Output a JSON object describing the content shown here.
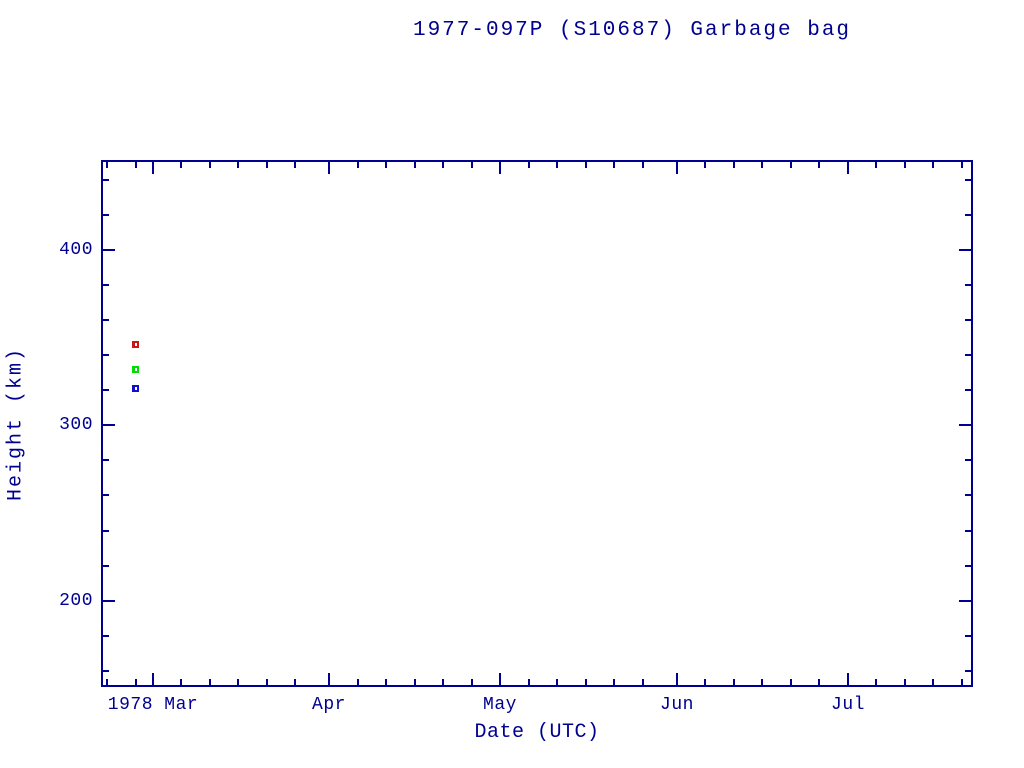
{
  "colors": {
    "axis": "#000090",
    "background": "#ffffff",
    "marker_red": "#cc1414",
    "marker_green": "#00dd00",
    "marker_blue": "#1010cc"
  },
  "chart_data": {
    "type": "scatter",
    "title": "1977-097P (S10687) Garbage bag",
    "xlabel": "Date (UTC)",
    "ylabel": "Height (km)",
    "grid": false,
    "legend": "none",
    "x_axis": {
      "unit": "day-of-year 1978",
      "domain": [
        50.9,
        204.0
      ],
      "major_ticks": [
        {
          "doy": 60,
          "label": "1978 Mar"
        },
        {
          "doy": 91,
          "label": "Apr"
        },
        {
          "doy": 121,
          "label": "May"
        },
        {
          "doy": 152,
          "label": "Jun"
        },
        {
          "doy": 182,
          "label": "Jul"
        }
      ],
      "minor_tick_doys": [
        52,
        57,
        65,
        70,
        75,
        80,
        85,
        96,
        101,
        106,
        111,
        116,
        126,
        131,
        136,
        141,
        146,
        157,
        162,
        167,
        172,
        177,
        187,
        192,
        197,
        202
      ]
    },
    "y_axis": {
      "unit": "km",
      "domain": [
        150.8,
        451.3
      ],
      "major_ticks": [
        {
          "value": 200,
          "label": "200"
        },
        {
          "value": 300,
          "label": "300"
        },
        {
          "value": 400,
          "label": "400"
        }
      ],
      "minor_tick_values": [
        160,
        180,
        220,
        240,
        260,
        280,
        320,
        340,
        360,
        380,
        420,
        440
      ]
    },
    "series": [
      {
        "name": "red-series",
        "color": "#cc1414",
        "points": [
          {
            "doy": 57,
            "date": "1978 Feb 26",
            "height_km": 346
          }
        ]
      },
      {
        "name": "green-series",
        "color": "#00dd00",
        "points": [
          {
            "doy": 57,
            "date": "1978 Feb 26",
            "height_km": 332
          }
        ]
      },
      {
        "name": "blue-series",
        "color": "#1010cc",
        "points": [
          {
            "doy": 57,
            "date": "1978 Feb 26",
            "height_km": 321
          }
        ]
      }
    ]
  }
}
